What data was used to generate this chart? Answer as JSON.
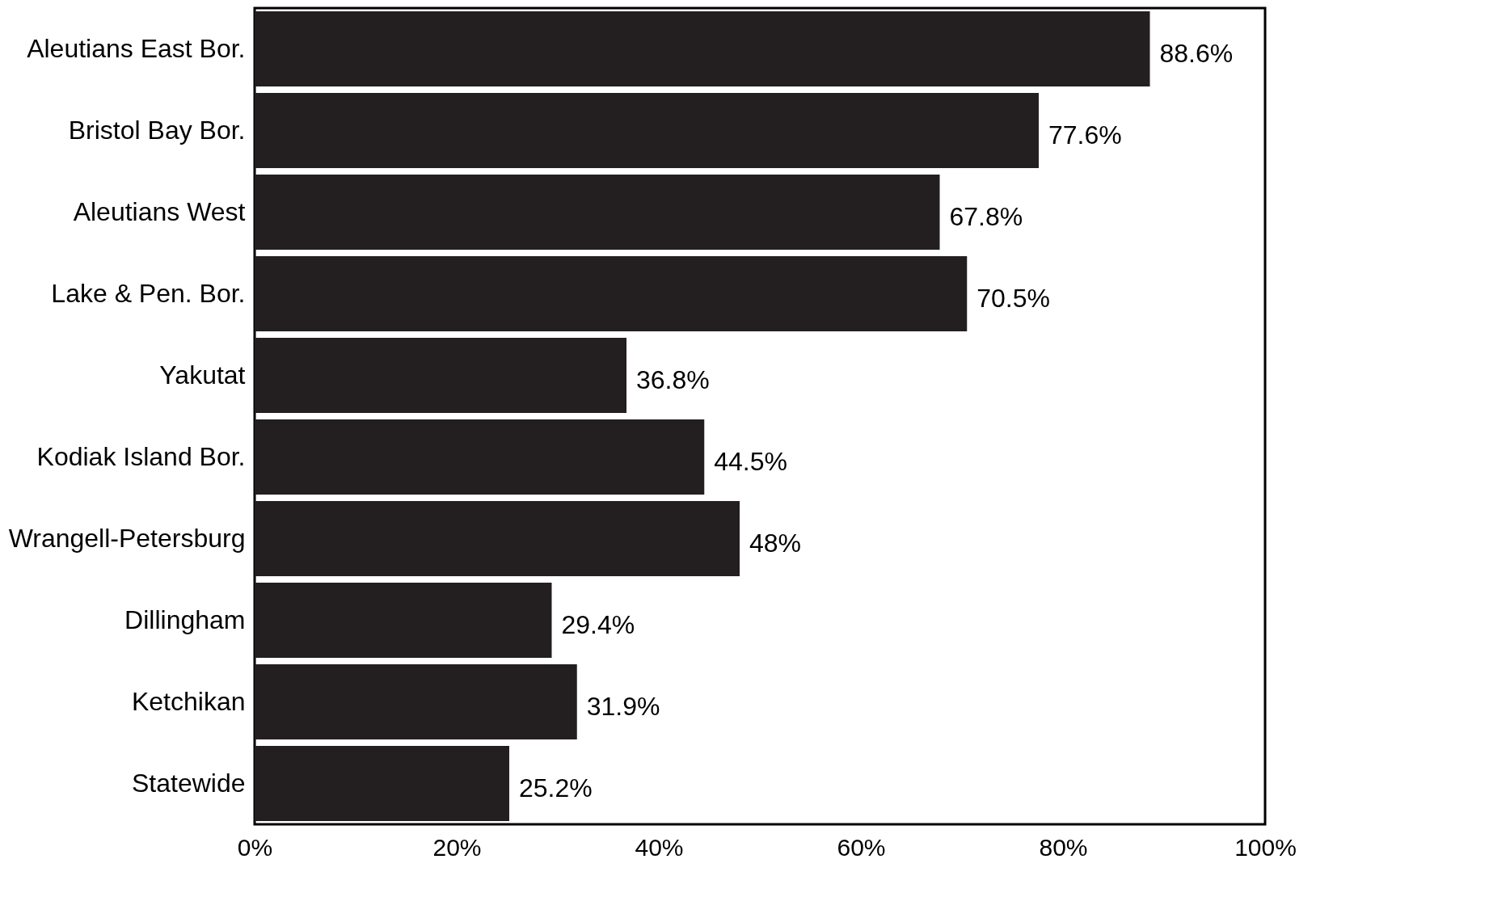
{
  "chart_data": {
    "type": "bar",
    "orientation": "horizontal",
    "categories": [
      "Aleutians East Bor.",
      "Bristol Bay Bor.",
      "Aleutians West",
      "Lake & Pen. Bor.",
      "Yakutat",
      "Kodiak Island Bor.",
      "Wrangell-Petersburg",
      "Dillingham",
      "Ketchikan",
      "Statewide"
    ],
    "values": [
      88.6,
      77.6,
      67.8,
      70.5,
      36.8,
      44.5,
      48,
      29.4,
      31.9,
      25.2
    ],
    "value_labels": [
      "88.6%",
      "77.6%",
      "67.8%",
      "70.5%",
      "36.8%",
      "44.5%",
      "48%",
      "29.4%",
      "31.9%",
      "25.2%"
    ],
    "color": "#231f20",
    "xlim": [
      0,
      100
    ],
    "xticks": [
      {
        "value": 0,
        "label": "0%"
      },
      {
        "value": 20,
        "label": "20%"
      },
      {
        "value": 40,
        "label": "40%"
      },
      {
        "value": 60,
        "label": "60%"
      },
      {
        "value": 80,
        "label": "80%"
      },
      {
        "value": 100,
        "label": "100%"
      }
    ],
    "grid": false
  }
}
